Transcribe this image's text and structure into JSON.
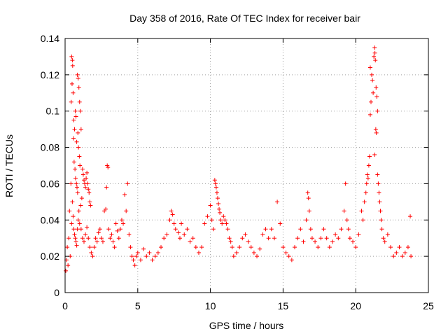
{
  "chart_data": {
    "type": "scatter",
    "title": "Day 358 of 2016, Rate Of TEC Index for receiver bair",
    "xlabel": "GPS time / hours",
    "ylabel": "ROTI / TECUs",
    "xlim": [
      0,
      25
    ],
    "ylim": [
      0,
      0.14
    ],
    "xticks": [
      0,
      5,
      10,
      15,
      20,
      25
    ],
    "yticks": [
      0,
      0.02,
      0.04,
      0.06,
      0.08,
      0.1,
      0.12,
      0.14
    ],
    "xtick_labels": [
      "0",
      "5",
      "10",
      "15",
      "20",
      "25"
    ],
    "ytick_labels": [
      "0",
      "0.02",
      "0.04",
      "0.06",
      "0.08",
      "0.1",
      "0.12",
      "0.14"
    ],
    "grid": true,
    "marker": "+",
    "color": "#ff0000",
    "series": [
      {
        "values_note_excluded": true,
        "points": [
          [
            0.05,
            0.012
          ],
          [
            0.1,
            0.018
          ],
          [
            0.15,
            0.025
          ],
          [
            0.2,
            0.015
          ],
          [
            0.25,
            0.03
          ],
          [
            0.3,
            0.045
          ],
          [
            0.35,
            0.02
          ],
          [
            0.4,
            0.06
          ],
          [
            0.45,
            0.13
          ],
          [
            0.5,
            0.128
          ],
          [
            0.52,
            0.125
          ],
          [
            0.48,
            0.115
          ],
          [
            0.55,
            0.11
          ],
          [
            0.42,
            0.105
          ],
          [
            0.6,
            0.095
          ],
          [
            0.65,
            0.09
          ],
          [
            0.58,
            0.085
          ],
          [
            0.7,
            0.1
          ],
          [
            0.75,
            0.097
          ],
          [
            0.8,
            0.083
          ],
          [
            0.85,
            0.12
          ],
          [
            0.9,
            0.118
          ],
          [
            0.95,
            0.113
          ],
          [
            1.0,
            0.105
          ],
          [
            1.05,
            0.1
          ],
          [
            1.1,
            0.09
          ],
          [
            0.88,
            0.088
          ],
          [
            0.92,
            0.08
          ],
          [
            0.98,
            0.075
          ],
          [
            1.02,
            0.07
          ],
          [
            0.62,
            0.072
          ],
          [
            0.68,
            0.068
          ],
          [
            0.72,
            0.063
          ],
          [
            0.78,
            0.06
          ],
          [
            0.82,
            0.058
          ],
          [
            0.86,
            0.055
          ],
          [
            1.2,
            0.068
          ],
          [
            1.25,
            0.065
          ],
          [
            1.3,
            0.062
          ],
          [
            1.35,
            0.06
          ],
          [
            1.4,
            0.058
          ],
          [
            1.45,
            0.063
          ],
          [
            1.5,
            0.066
          ],
          [
            1.55,
            0.06
          ],
          [
            1.6,
            0.057
          ],
          [
            1.65,
            0.055
          ],
          [
            1.7,
            0.05
          ],
          [
            1.75,
            0.048
          ],
          [
            1.15,
            0.052
          ],
          [
            1.08,
            0.048
          ],
          [
            0.5,
            0.05
          ],
          [
            0.55,
            0.042
          ],
          [
            0.45,
            0.038
          ],
          [
            0.6,
            0.035
          ],
          [
            0.65,
            0.032
          ],
          [
            0.7,
            0.03
          ],
          [
            0.75,
            0.028
          ],
          [
            0.8,
            0.026
          ],
          [
            0.85,
            0.035
          ],
          [
            0.9,
            0.04
          ],
          [
            0.95,
            0.045
          ],
          [
            1.0,
            0.038
          ],
          [
            1.1,
            0.035
          ],
          [
            1.2,
            0.03
          ],
          [
            1.3,
            0.028
          ],
          [
            1.4,
            0.032
          ],
          [
            1.5,
            0.036
          ],
          [
            1.6,
            0.03
          ],
          [
            1.7,
            0.025
          ],
          [
            1.8,
            0.022
          ],
          [
            1.9,
            0.02
          ],
          [
            2.0,
            0.025
          ],
          [
            2.1,
            0.03
          ],
          [
            2.2,
            0.028
          ],
          [
            2.3,
            0.033
          ],
          [
            2.4,
            0.035
          ],
          [
            2.5,
            0.03
          ],
          [
            2.6,
            0.028
          ],
          [
            2.7,
            0.045
          ],
          [
            2.8,
            0.046
          ],
          [
            2.9,
            0.07
          ],
          [
            2.95,
            0.069
          ],
          [
            2.85,
            0.058
          ],
          [
            3.0,
            0.035
          ],
          [
            3.1,
            0.03
          ],
          [
            3.2,
            0.032
          ],
          [
            3.3,
            0.028
          ],
          [
            3.4,
            0.025
          ],
          [
            3.5,
            0.038
          ],
          [
            3.6,
            0.034
          ],
          [
            3.7,
            0.03
          ],
          [
            3.8,
            0.035
          ],
          [
            3.9,
            0.04
          ],
          [
            4.0,
            0.038
          ],
          [
            4.1,
            0.054
          ],
          [
            4.3,
            0.06
          ],
          [
            4.2,
            0.045
          ],
          [
            4.4,
            0.032
          ],
          [
            4.5,
            0.025
          ],
          [
            4.6,
            0.02
          ],
          [
            4.7,
            0.018
          ],
          [
            4.8,
            0.015
          ],
          [
            4.9,
            0.02
          ],
          [
            5.0,
            0.022
          ],
          [
            5.2,
            0.018
          ],
          [
            5.4,
            0.024
          ],
          [
            5.6,
            0.02
          ],
          [
            5.8,
            0.022
          ],
          [
            6.0,
            0.018
          ],
          [
            6.2,
            0.02
          ],
          [
            6.4,
            0.022
          ],
          [
            6.6,
            0.025
          ],
          [
            6.8,
            0.03
          ],
          [
            7.0,
            0.032
          ],
          [
            7.2,
            0.04
          ],
          [
            7.3,
            0.045
          ],
          [
            7.4,
            0.043
          ],
          [
            7.5,
            0.038
          ],
          [
            7.6,
            0.035
          ],
          [
            7.8,
            0.033
          ],
          [
            7.9,
            0.03
          ],
          [
            8.0,
            0.038
          ],
          [
            8.2,
            0.032
          ],
          [
            8.4,
            0.035
          ],
          [
            8.6,
            0.028
          ],
          [
            8.8,
            0.03
          ],
          [
            9.0,
            0.025
          ],
          [
            9.2,
            0.022
          ],
          [
            9.4,
            0.025
          ],
          [
            9.6,
            0.038
          ],
          [
            9.8,
            0.042
          ],
          [
            10.0,
            0.048
          ],
          [
            10.1,
            0.04
          ],
          [
            10.2,
            0.035
          ],
          [
            10.3,
            0.062
          ],
          [
            10.35,
            0.06
          ],
          [
            10.4,
            0.058
          ],
          [
            10.45,
            0.055
          ],
          [
            10.5,
            0.052
          ],
          [
            10.55,
            0.049
          ],
          [
            10.6,
            0.046
          ],
          [
            10.65,
            0.044
          ],
          [
            10.7,
            0.04
          ],
          [
            10.8,
            0.038
          ],
          [
            10.9,
            0.042
          ],
          [
            11.0,
            0.04
          ],
          [
            11.1,
            0.038
          ],
          [
            11.2,
            0.035
          ],
          [
            11.3,
            0.03
          ],
          [
            11.4,
            0.028
          ],
          [
            11.5,
            0.025
          ],
          [
            11.6,
            0.02
          ],
          [
            11.8,
            0.022
          ],
          [
            12.0,
            0.025
          ],
          [
            12.2,
            0.03
          ],
          [
            12.4,
            0.032
          ],
          [
            12.6,
            0.028
          ],
          [
            12.8,
            0.025
          ],
          [
            13.0,
            0.022
          ],
          [
            13.2,
            0.02
          ],
          [
            13.4,
            0.024
          ],
          [
            13.6,
            0.032
          ],
          [
            13.8,
            0.035
          ],
          [
            14.0,
            0.03
          ],
          [
            14.2,
            0.035
          ],
          [
            14.4,
            0.03
          ],
          [
            14.6,
            0.05
          ],
          [
            14.8,
            0.038
          ],
          [
            15.0,
            0.025
          ],
          [
            15.2,
            0.022
          ],
          [
            15.4,
            0.02
          ],
          [
            15.6,
            0.018
          ],
          [
            15.8,
            0.025
          ],
          [
            16.0,
            0.03
          ],
          [
            16.2,
            0.035
          ],
          [
            16.4,
            0.028
          ],
          [
            16.6,
            0.04
          ],
          [
            16.7,
            0.055
          ],
          [
            16.75,
            0.052
          ],
          [
            16.8,
            0.045
          ],
          [
            16.9,
            0.035
          ],
          [
            17.0,
            0.03
          ],
          [
            17.2,
            0.028
          ],
          [
            17.4,
            0.025
          ],
          [
            17.6,
            0.03
          ],
          [
            17.8,
            0.035
          ],
          [
            18.0,
            0.03
          ],
          [
            18.2,
            0.025
          ],
          [
            18.4,
            0.028
          ],
          [
            18.6,
            0.032
          ],
          [
            18.8,
            0.03
          ],
          [
            19.0,
            0.035
          ],
          [
            19.2,
            0.045
          ],
          [
            19.3,
            0.06
          ],
          [
            19.4,
            0.04
          ],
          [
            19.5,
            0.035
          ],
          [
            19.6,
            0.03
          ],
          [
            19.8,
            0.028
          ],
          [
            20.0,
            0.025
          ],
          [
            20.2,
            0.032
          ],
          [
            20.4,
            0.045
          ],
          [
            20.5,
            0.04
          ],
          [
            20.6,
            0.05
          ],
          [
            20.7,
            0.055
          ],
          [
            20.75,
            0.06
          ],
          [
            20.8,
            0.065
          ],
          [
            20.85,
            0.063
          ],
          [
            20.9,
            0.07
          ],
          [
            20.95,
            0.075
          ],
          [
            21.0,
            0.098
          ],
          [
            21.05,
            0.105
          ],
          [
            21.1,
            0.12
          ],
          [
            21.0,
            0.124
          ],
          [
            21.15,
            0.117
          ],
          [
            21.2,
            0.11
          ],
          [
            21.25,
            0.13
          ],
          [
            21.3,
            0.135
          ],
          [
            21.32,
            0.132
          ],
          [
            21.35,
            0.128
          ],
          [
            21.4,
            0.113
          ],
          [
            21.45,
            0.108
          ],
          [
            21.5,
            0.1
          ],
          [
            21.38,
            0.09
          ],
          [
            21.42,
            0.088
          ],
          [
            21.3,
            0.076
          ],
          [
            21.5,
            0.065
          ],
          [
            21.55,
            0.06
          ],
          [
            21.6,
            0.055
          ],
          [
            21.65,
            0.05
          ],
          [
            21.7,
            0.045
          ],
          [
            21.75,
            0.04
          ],
          [
            21.8,
            0.035
          ],
          [
            21.9,
            0.03
          ],
          [
            22.0,
            0.028
          ],
          [
            22.2,
            0.032
          ],
          [
            22.4,
            0.025
          ],
          [
            22.6,
            0.02
          ],
          [
            22.8,
            0.022
          ],
          [
            23.0,
            0.025
          ],
          [
            23.2,
            0.02
          ],
          [
            23.4,
            0.022
          ],
          [
            23.6,
            0.025
          ],
          [
            23.75,
            0.042
          ],
          [
            23.8,
            0.02
          ]
        ]
      }
    ]
  }
}
